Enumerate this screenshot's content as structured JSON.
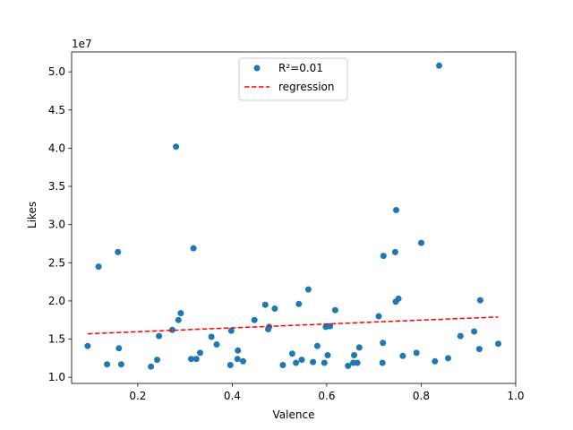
{
  "chart_data": {
    "type": "scatter",
    "xlabel": "Valence",
    "ylabel": "Likes",
    "offset_label": "1e7",
    "xlim": [
      0.06,
      1.0
    ],
    "ylim": [
      0.92,
      5.26
    ],
    "x_ticks": [
      0.2,
      0.4,
      0.6,
      0.8,
      1.0
    ],
    "x_tick_labels": [
      "0.2",
      "0.4",
      "0.6",
      "0.8",
      "1.0"
    ],
    "y_ticks": [
      1.0,
      1.5,
      2.0,
      2.5,
      3.0,
      3.5,
      4.0,
      4.5,
      5.0
    ],
    "y_tick_labels": [
      "1.0",
      "1.5",
      "2.0",
      "2.5",
      "3.0",
      "3.5",
      "4.0",
      "4.5",
      "5.0"
    ],
    "grid": false,
    "legend_position": "top-center",
    "series": [
      {
        "name": "R²=0.01",
        "kind": "scatter",
        "color": "#1f77b4",
        "points": [
          [
            0.094,
            1.41
          ],
          [
            0.117,
            2.45
          ],
          [
            0.135,
            1.17
          ],
          [
            0.158,
            2.64
          ],
          [
            0.16,
            1.38
          ],
          [
            0.165,
            1.17
          ],
          [
            0.228,
            1.14
          ],
          [
            0.241,
            1.23
          ],
          [
            0.245,
            1.54
          ],
          [
            0.273,
            1.62
          ],
          [
            0.281,
            4.02
          ],
          [
            0.286,
            1.75
          ],
          [
            0.291,
            1.84
          ],
          [
            0.313,
            1.24
          ],
          [
            0.318,
            2.69
          ],
          [
            0.324,
            1.24
          ],
          [
            0.332,
            1.32
          ],
          [
            0.356,
            1.53
          ],
          [
            0.367,
            1.43
          ],
          [
            0.396,
            1.16
          ],
          [
            0.398,
            1.61
          ],
          [
            0.411,
            1.24
          ],
          [
            0.412,
            1.35
          ],
          [
            0.423,
            1.21
          ],
          [
            0.447,
            1.75
          ],
          [
            0.47,
            1.95
          ],
          [
            0.476,
            1.63
          ],
          [
            0.478,
            1.66
          ],
          [
            0.49,
            1.9
          ],
          [
            0.507,
            1.16
          ],
          [
            0.527,
            1.31
          ],
          [
            0.535,
            1.19
          ],
          [
            0.541,
            1.96
          ],
          [
            0.547,
            1.23
          ],
          [
            0.561,
            2.15
          ],
          [
            0.571,
            1.2
          ],
          [
            0.58,
            1.41
          ],
          [
            0.595,
            1.19
          ],
          [
            0.598,
            1.66
          ],
          [
            0.602,
            1.29
          ],
          [
            0.607,
            1.67
          ],
          [
            0.618,
            1.88
          ],
          [
            0.645,
            1.15
          ],
          [
            0.656,
            1.19
          ],
          [
            0.658,
            1.29
          ],
          [
            0.665,
            1.19
          ],
          [
            0.669,
            1.39
          ],
          [
            0.71,
            1.8
          ],
          [
            0.718,
            1.19
          ],
          [
            0.719,
            1.45
          ],
          [
            0.72,
            2.59
          ],
          [
            0.745,
            2.64
          ],
          [
            0.746,
            1.99
          ],
          [
            0.747,
            3.19
          ],
          [
            0.752,
            2.03
          ],
          [
            0.761,
            1.28
          ],
          [
            0.79,
            1.32
          ],
          [
            0.8,
            2.76
          ],
          [
            0.829,
            1.21
          ],
          [
            0.838,
            5.08
          ],
          [
            0.857,
            1.25
          ],
          [
            0.883,
            1.54
          ],
          [
            0.912,
            1.6
          ],
          [
            0.923,
            1.37
          ],
          [
            0.925,
            2.01
          ],
          [
            0.963,
            1.44
          ]
        ]
      },
      {
        "name": "regression",
        "kind": "line",
        "color": "#ff0000",
        "style": "dashed",
        "points": [
          [
            0.094,
            1.57
          ],
          [
            0.963,
            1.79
          ]
        ]
      }
    ]
  }
}
